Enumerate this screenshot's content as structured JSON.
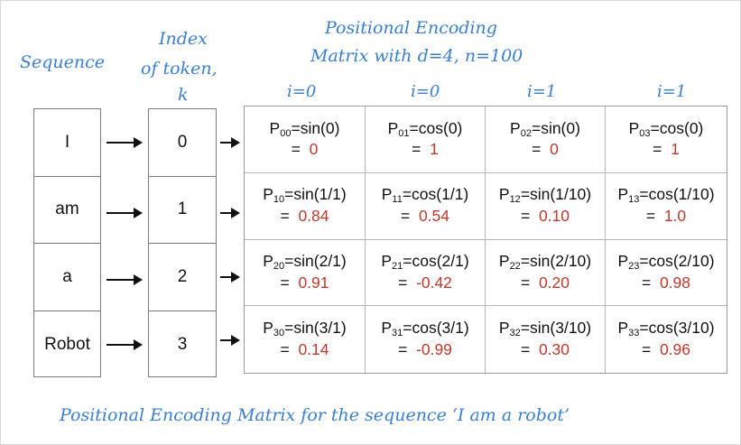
{
  "labels": {
    "sequence": "Sequence",
    "index_line1": "Index",
    "index_line2": "of token,",
    "index_line3": "k",
    "pe_line1": "Positional Encoding",
    "pe_line2": "Matrix with d=4, n=100",
    "caption": "Positional Encoding Matrix for the sequence ‘I am a robot’"
  },
  "i_labels": [
    "i=0",
    "i=0",
    "i=1",
    "i=1"
  ],
  "tokens": [
    "I",
    "am",
    "a",
    "Robot"
  ],
  "indices": [
    "0",
    "1",
    "2",
    "3"
  ],
  "matrix": [
    [
      {
        "sub": "00",
        "func": "=sin(0)",
        "eq": "=",
        "value": "0"
      },
      {
        "sub": "01",
        "func": "=cos(0)",
        "eq": "=",
        "value": "1"
      },
      {
        "sub": "02",
        "func": "=sin(0)",
        "eq": "=",
        "value": "0"
      },
      {
        "sub": "03",
        "func": "=cos(0)",
        "eq": "=",
        "value": "1"
      }
    ],
    [
      {
        "sub": "10",
        "func": "=sin(1/1)",
        "eq": "=",
        "value": "0.84"
      },
      {
        "sub": "11",
        "func": "=cos(1/1)",
        "eq": "=",
        "value": "0.54"
      },
      {
        "sub": "12",
        "func": "=sin(1/10)",
        "eq": "=",
        "value": "0.10"
      },
      {
        "sub": "13",
        "func": "=cos(1/10)",
        "eq": "=",
        "value": "1.0"
      }
    ],
    [
      {
        "sub": "20",
        "func": "=sin(2/1)",
        "eq": "=",
        "value": "0.91"
      },
      {
        "sub": "21",
        "func": "=cos(2/1)",
        "eq": "=",
        "value": "-0.42"
      },
      {
        "sub": "22",
        "func": "=sin(2/10)",
        "eq": "=",
        "value": "0.20"
      },
      {
        "sub": "23",
        "func": "=cos(2/10)",
        "eq": "=",
        "value": "0.98"
      }
    ],
    [
      {
        "sub": "30",
        "func": "=sin(3/1)",
        "eq": "=",
        "value": "0.14"
      },
      {
        "sub": "31",
        "func": "=cos(3/1)",
        "eq": "=",
        "value": "-0.99"
      },
      {
        "sub": "32",
        "func": "=sin(3/10)",
        "eq": "=",
        "value": "0.30"
      },
      {
        "sub": "33",
        "func": "=cos(3/10)",
        "eq": "=",
        "value": "0.96"
      }
    ]
  ],
  "colors": {
    "handwriting": "#3a7fd0",
    "value": "#c0392b"
  }
}
